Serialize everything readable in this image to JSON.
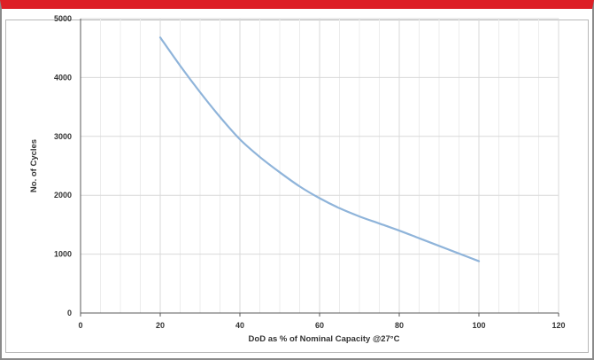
{
  "chart_data": {
    "type": "line",
    "xlabel": "DoD as % of Nominal Capacity @27°C",
    "ylabel": "No. of Cycles",
    "xlim": [
      0,
      120
    ],
    "ylim": [
      0,
      5000
    ],
    "x_ticks": [
      0,
      20,
      40,
      60,
      80,
      100,
      120
    ],
    "y_ticks": [
      0,
      1000,
      2000,
      3000,
      4000,
      5000
    ],
    "grid": true,
    "series": [
      {
        "color": "#8fb4da",
        "x": [
          20,
          25,
          30,
          35,
          40,
          45,
          50,
          55,
          60,
          65,
          70,
          75,
          80,
          85,
          90,
          95,
          100
        ],
        "y": [
          4680,
          4200,
          3750,
          3330,
          2950,
          2650,
          2390,
          2150,
          1950,
          1780,
          1640,
          1520,
          1400,
          1270,
          1140,
          1010,
          880
        ]
      }
    ]
  },
  "colors": {
    "top_bar": "#dd1f26",
    "grid": "#d9d9d9",
    "axis": "#595959"
  }
}
